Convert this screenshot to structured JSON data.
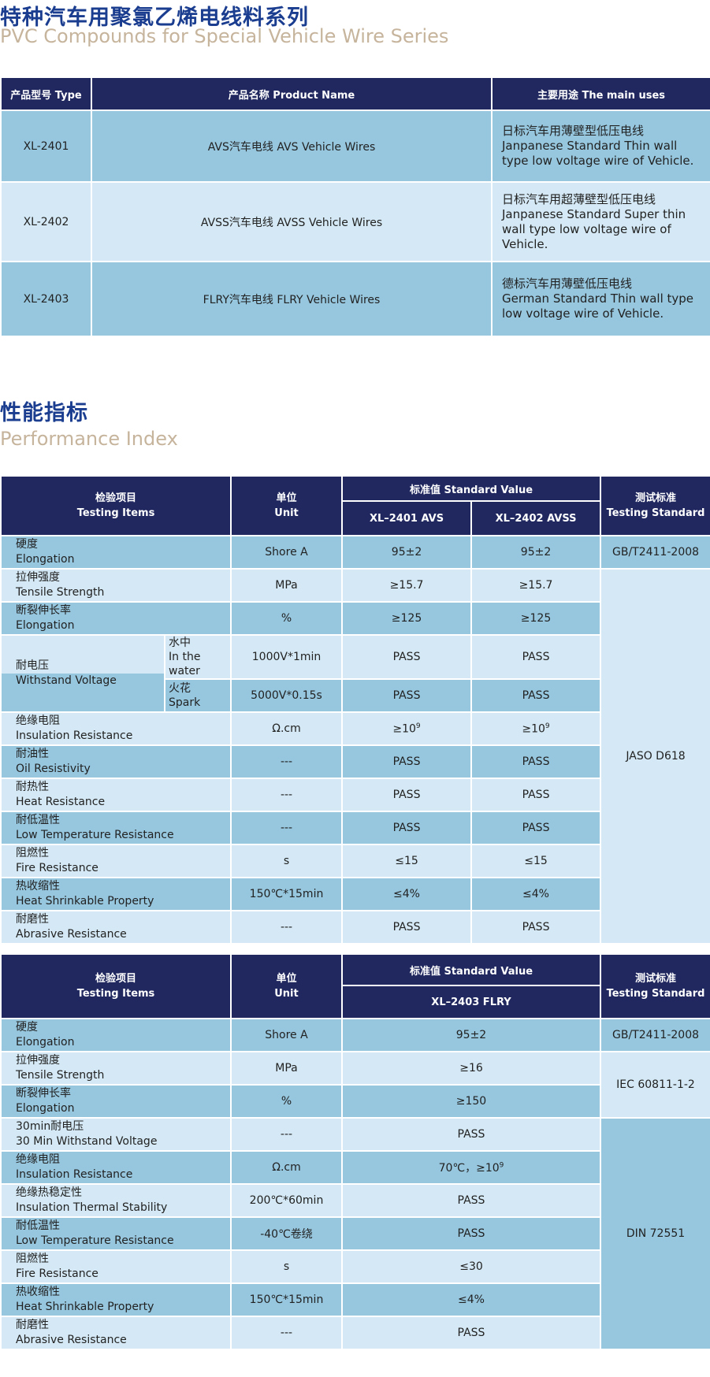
{
  "section1": {
    "title_cn": "特种汽车用聚氯乙烯电线料系列",
    "title_en": "PVC Compounds for Special Vehicle Wire Series"
  },
  "product_table": {
    "headers": [
      "产品型号 Type",
      "产品名称 Product Name",
      "主要用途 The main uses"
    ],
    "rows": [
      {
        "type": "XL-2401",
        "name": "AVS汽车电线 AVS Vehicle Wires",
        "use_cn": "日标汽车用薄壁型低压电线",
        "use_en1": "Janpanese Standard Thin wall",
        "use_en2": "type low voltage wire of Vehicle."
      },
      {
        "type": "XL-2402",
        "name": "AVSS汽车电线 AVSS Vehicle Wires",
        "use_cn": "日标汽车用超薄壁型低压电线",
        "use_en1": "Janpanese Standard Super thin",
        "use_en2": "wall type low voltage wire of Vehicle."
      },
      {
        "type": "XL-2403",
        "name": "FLRY汽车电线 FLRY Vehicle Wires",
        "use_cn": "德标汽车用薄壁低压电线",
        "use_en1": "German Standard Thin wall type",
        "use_en2": "low voltage wire of Vehicle."
      }
    ]
  },
  "section2": {
    "title_cn": "性能指标",
    "title_en": "Performance Index"
  },
  "perf_table1": {
    "h_item_cn": "检验项目",
    "h_item_en": "Testing Items",
    "h_unit_cn": "单位",
    "h_unit_en": "Unit",
    "h_std_value": "标准值  Standard Value",
    "h_col1": "XL–2401       AVS",
    "h_col2": "XL–2402       AVSS",
    "h_test_cn": "测试标准",
    "h_test_en": "Testing Standard",
    "rows": [
      {
        "cn": "硬度",
        "en": "Elongation",
        "unit": "Shore A",
        "v1": "95±2",
        "v2": "95±2"
      },
      {
        "cn": "拉伸强度",
        "en": "Tensile Strength",
        "unit": "MPa",
        "v1": "≥15.7",
        "v2": "≥15.7"
      },
      {
        "cn": "断裂伸长率",
        "en": "Elongation",
        "unit": "%",
        "v1": "≥125",
        "v2": "≥125"
      },
      {
        "cn": "绝缘电阻",
        "en": "Insulation Resistance",
        "unit": "Ω.cm",
        "v1": "≥10",
        "v1_sup": "9",
        "v2": "≥10",
        "v2_sup": "9"
      },
      {
        "cn": "耐油性",
        "en": "Oil Resistivity",
        "unit": "---",
        "v1": "PASS",
        "v2": "PASS"
      },
      {
        "cn": "耐热性",
        "en": "Heat Resistance",
        "unit": "---",
        "v1": "PASS",
        "v2": "PASS"
      },
      {
        "cn": "耐低温性",
        "en": "Low Temperature Resistance",
        "unit": "---",
        "v1": "PASS",
        "v2": "PASS"
      },
      {
        "cn": "阻燃性",
        "en": "Fire Resistance",
        "unit": "s",
        "v1": "≤15",
        "v2": "≤15"
      },
      {
        "cn": "热收缩性",
        "en": "Heat Shrinkable Property",
        "unit": "150℃*15min",
        "v1": "≤4%",
        "v2": "≤4%"
      },
      {
        "cn": "耐磨性",
        "en": "Abrasive Resistance",
        "unit": "---",
        "v1": "PASS",
        "v2": "PASS"
      }
    ],
    "withstand": {
      "cn": "耐电压",
      "en": "Withstand Voltage",
      "water_cn": "水中",
      "water_en": "In the water",
      "water_unit": "1000V*1min",
      "water_v1": "PASS",
      "water_v2": "PASS",
      "spark_cn": "火花",
      "spark_en": "Spark",
      "spark_unit": "5000V*0.15s",
      "spark_v1": "PASS",
      "spark_v2": "PASS"
    },
    "std1": "GB/T2411-2008",
    "std2": "JASO D618"
  },
  "perf_table2": {
    "h_item_cn": "检验项目",
    "h_item_en": "Testing Items",
    "h_unit_cn": "单位",
    "h_unit_en": "Unit",
    "h_std_value": "标准值  Standard Value",
    "h_col1": "XL–2403       FLRY",
    "h_test_cn": "测试标准",
    "h_test_en": "Testing Standard",
    "rows": [
      {
        "cn": "硬度",
        "en": "Elongation",
        "unit": "Shore A",
        "v": "95±2"
      },
      {
        "cn": "拉伸强度",
        "en": "Tensile Strength",
        "unit": "MPa",
        "v": "≥16"
      },
      {
        "cn": "断裂伸长率",
        "en": "Elongation",
        "unit": "%",
        "v": "≥150"
      },
      {
        "cn": "30min耐电压",
        "en": "30 Min Withstand Voltage",
        "unit": "---",
        "v": "PASS"
      },
      {
        "cn": "绝缘电阻",
        "en": "Insulation Resistance",
        "unit": "Ω.cm",
        "v": "70℃，≥10",
        "v_sup": "9"
      },
      {
        "cn": "绝缘热稳定性",
        "en": "Insulation Thermal Stability",
        "unit": "200℃*60min",
        "v": "PASS"
      },
      {
        "cn": "耐低温性",
        "en": "Low Temperature Resistance",
        "unit": "-40℃卷绕",
        "v": "PASS"
      },
      {
        "cn": "阻燃性",
        "en": "Fire Resistance",
        "unit": "s",
        "v": "≤30"
      },
      {
        "cn": "热收缩性",
        "en": "Heat Shrinkable Property",
        "unit": "150℃*15min",
        "v": "≤4%"
      },
      {
        "cn": "耐磨性",
        "en": "Abrasive Resistance",
        "unit": "---",
        "v": "PASS"
      }
    ],
    "std1": "GB/T2411-2008",
    "std2": "IEC 60811-1-2",
    "std3": "DIN 72551"
  }
}
